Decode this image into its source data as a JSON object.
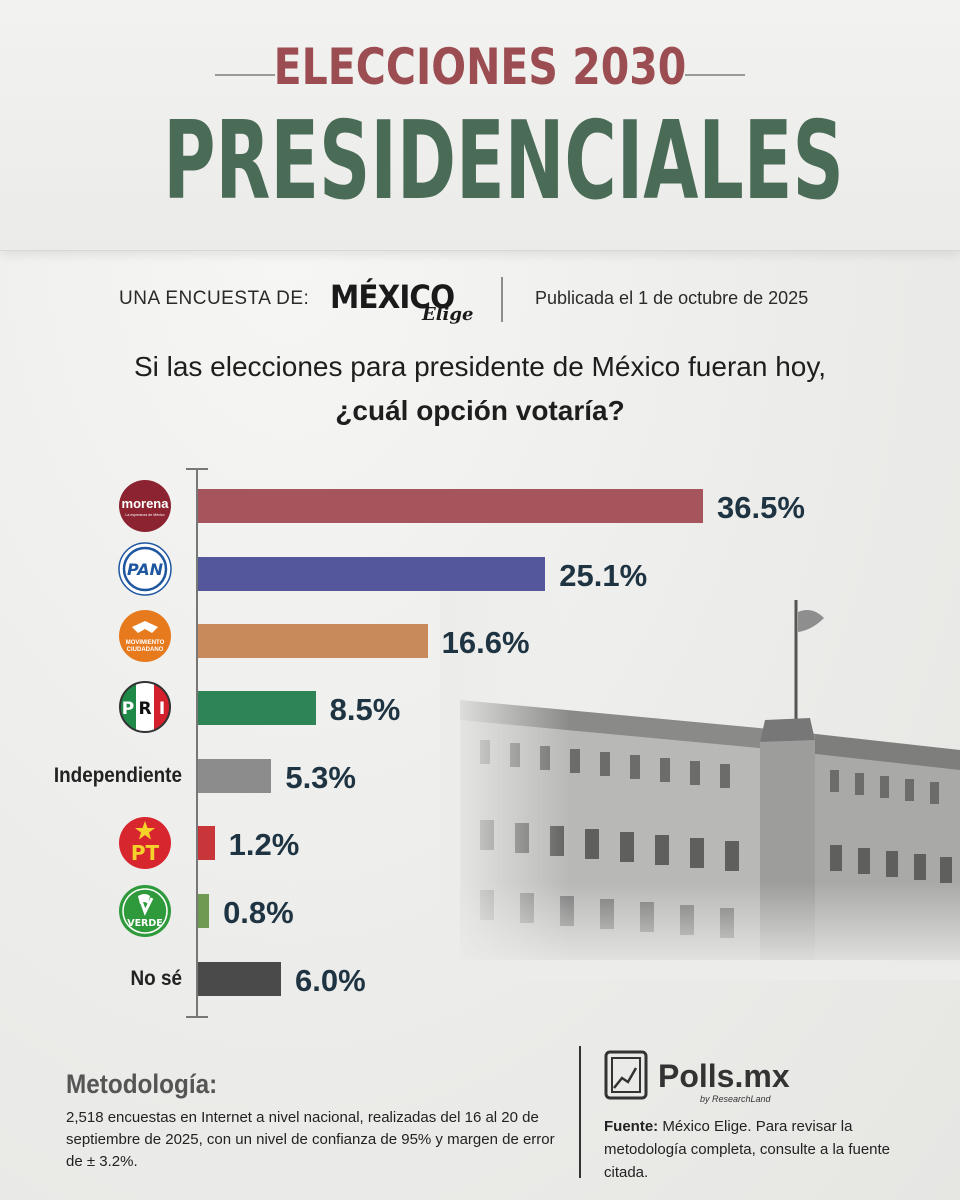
{
  "header": {
    "title_top": "ELECCIONES 2030",
    "title_main": "PRESIDENCIALES",
    "byline": "UNA ENCUESTA DE:",
    "brand_main": "MÉXICO",
    "brand_sub": "Elige",
    "published": "Publicada el 1 de octubre de 2025"
  },
  "question": {
    "line1": "Si las elecciones para presidente de México fueran hoy,",
    "line2": "¿cuál opción votaría?"
  },
  "colors": {
    "title_top": "#9b4d52",
    "title_main": "#4a6b55",
    "value_text": "#1f3442"
  },
  "chart_data": {
    "type": "bar",
    "orientation": "horizontal",
    "categories": [
      "morena",
      "PAN",
      "MOVIMIENTO CIUDADANO",
      "PRI",
      "Independiente",
      "PT",
      "VERDE",
      "No sé"
    ],
    "values": [
      36.5,
      25.1,
      16.6,
      8.5,
      5.3,
      1.2,
      0.8,
      6.0
    ],
    "value_labels": [
      "36.5%",
      "25.1%",
      "16.6%",
      "8.5%",
      "5.3%",
      "1.2%",
      "0.8%",
      "6.0%"
    ],
    "bar_colors": [
      "#a5555b",
      "#55579c",
      "#c8895b",
      "#2e8456",
      "#8c8c8c",
      "#c8363a",
      "#6f9a54",
      "#4a4a4a"
    ],
    "grid": false,
    "legend": "none"
  },
  "logos": {
    "morena": {
      "label": "morena",
      "sublabel": "La esperanza de México",
      "icon": "morena-logo-icon"
    },
    "pan": {
      "label": "PAN",
      "icon": "pan-logo-icon"
    },
    "mc": {
      "label_1": "MOVIMIENTO",
      "label_2": "CIUDADANO",
      "icon": "mc-logo-icon"
    },
    "pri": {
      "label_p": "P",
      "label_r": "R",
      "label_i": "I",
      "icon": "pri-logo-icon"
    },
    "independiente": {
      "label": "Independiente"
    },
    "pt": {
      "label": "PT",
      "icon": "pt-logo-icon"
    },
    "verde": {
      "label": "VERDE",
      "icon": "verde-logo-icon"
    },
    "nose": {
      "label": "No sé"
    }
  },
  "methodology": {
    "title": "Metodología:",
    "text": "2,518 encuestas en Internet a nivel nacional, realizadas del 16 al 20 de septiembre de 2025, con un nivel de confianza de 95% y margen de error de ± 3.2%."
  },
  "source": {
    "brand": "Polls.mx",
    "brand_sub": "by ResearchLand",
    "label": "Fuente:",
    "text": " México Elige. Para revisar la metodología completa, consulte a la fuente citada."
  }
}
